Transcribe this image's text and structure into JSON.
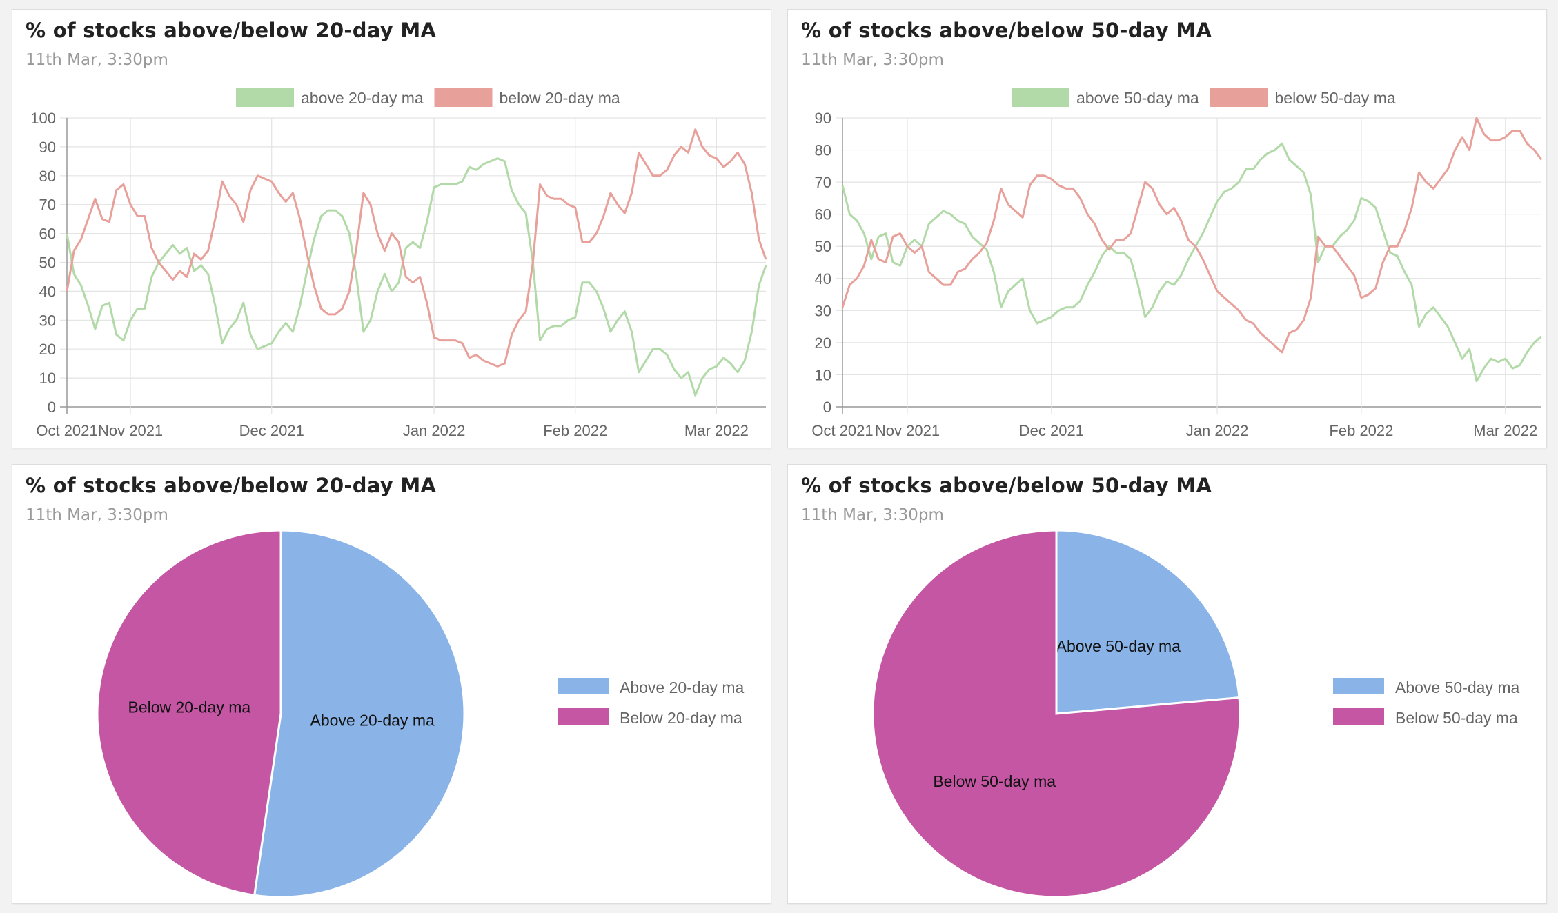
{
  "cards": [
    {
      "title": "% of stocks above/below 20-day MA",
      "subtitle": "11th Mar, 3:30pm"
    },
    {
      "title": "% of stocks above/below 50-day MA",
      "subtitle": "11th Mar, 3:30pm"
    },
    {
      "title": "% of stocks above/below 20-day MA",
      "subtitle": "11th Mar, 3:30pm"
    },
    {
      "title": "% of stocks above/below 50-day MA",
      "subtitle": "11th Mar, 3:30pm"
    }
  ],
  "colors": {
    "above_line": "#b2d9a8",
    "below_line": "#e8a09a",
    "above_pie": "#8ab4e8",
    "below_pie": "#c456a3"
  },
  "chart_data": [
    {
      "type": "line",
      "ylim": [
        0,
        100
      ],
      "yticks": [
        0,
        10,
        20,
        30,
        40,
        50,
        60,
        70,
        80,
        90,
        100
      ],
      "xticks": [
        {
          "label": "Oct 2021",
          "index": 0
        },
        {
          "label": "Nov 2021",
          "index": 9
        },
        {
          "label": "Dec 2021",
          "index": 29
        },
        {
          "label": "Jan 2022",
          "index": 52
        },
        {
          "label": "Feb 2022",
          "index": 72
        },
        {
          "label": "Mar 2022",
          "index": 92
        }
      ],
      "legend_position": "top",
      "series": [
        {
          "name": "above 20-day ma",
          "values": [
            60,
            46,
            42,
            35,
            27,
            35,
            36,
            25,
            23,
            30,
            34,
            34,
            45,
            50,
            53,
            56,
            53,
            55,
            47,
            49,
            46,
            35,
            22,
            27,
            30,
            36,
            25,
            20,
            21,
            22,
            26,
            29,
            26,
            35,
            47,
            58,
            66,
            68,
            68,
            66,
            60,
            45,
            26,
            30,
            40,
            46,
            40,
            43,
            55,
            57,
            55,
            64,
            76,
            77,
            77,
            77,
            78,
            83,
            82,
            84,
            85,
            86,
            85,
            75,
            70,
            67,
            50,
            23,
            27,
            28,
            28,
            30,
            31,
            43,
            43,
            40,
            34,
            26,
            30,
            33,
            26,
            12,
            16,
            20,
            20,
            18,
            13,
            10,
            12,
            4,
            10,
            13,
            14,
            17,
            15,
            12,
            16,
            26,
            42,
            49
          ]
        },
        {
          "name": "below 20-day ma",
          "values": [
            40,
            54,
            58,
            65,
            72,
            65,
            64,
            75,
            77,
            70,
            66,
            66,
            55,
            50,
            47,
            44,
            47,
            45,
            53,
            51,
            54,
            65,
            78,
            73,
            70,
            64,
            75,
            80,
            79,
            78,
            74,
            71,
            74,
            65,
            53,
            42,
            34,
            32,
            32,
            34,
            40,
            55,
            74,
            70,
            60,
            54,
            60,
            57,
            45,
            43,
            45,
            36,
            24,
            23,
            23,
            23,
            22,
            17,
            18,
            16,
            15,
            14,
            15,
            25,
            30,
            33,
            50,
            77,
            73,
            72,
            72,
            70,
            69,
            57,
            57,
            60,
            66,
            74,
            70,
            67,
            74,
            88,
            84,
            80,
            80,
            82,
            87,
            90,
            88,
            96,
            90,
            87,
            86,
            83,
            85,
            88,
            84,
            74,
            58,
            51
          ]
        }
      ]
    },
    {
      "type": "line",
      "ylim": [
        0,
        90
      ],
      "yticks": [
        0,
        10,
        20,
        30,
        40,
        50,
        60,
        70,
        80,
        90
      ],
      "xticks": [
        {
          "label": "Oct 2021",
          "index": 0
        },
        {
          "label": "Nov 2021",
          "index": 9
        },
        {
          "label": "Dec 2021",
          "index": 29
        },
        {
          "label": "Jan 2022",
          "index": 52
        },
        {
          "label": "Feb 2022",
          "index": 72
        },
        {
          "label": "Mar 2022",
          "index": 92
        }
      ],
      "legend_position": "top",
      "series": [
        {
          "name": "above 50-day ma",
          "values": [
            69,
            60,
            58,
            54,
            46,
            53,
            54,
            45,
            44,
            50,
            52,
            50,
            57,
            59,
            61,
            60,
            58,
            57,
            53,
            51,
            49,
            42,
            31,
            36,
            38,
            40,
            30,
            26,
            27,
            28,
            30,
            31,
            31,
            33,
            38,
            42,
            47,
            50,
            48,
            48,
            46,
            38,
            28,
            31,
            36,
            39,
            38,
            41,
            46,
            50,
            54,
            59,
            64,
            67,
            68,
            70,
            74,
            74,
            77,
            79,
            80,
            82,
            77,
            75,
            73,
            66,
            45,
            50,
            50,
            53,
            55,
            58,
            65,
            64,
            62,
            55,
            48,
            47,
            42,
            38,
            25,
            29,
            31,
            28,
            25,
            20,
            15,
            18,
            8,
            12,
            15,
            14,
            15,
            12,
            13,
            17,
            20,
            22
          ]
        },
        {
          "name": "below 50-day ma",
          "values": [
            31,
            38,
            40,
            44,
            52,
            46,
            45,
            53,
            54,
            50,
            48,
            50,
            42,
            40,
            38,
            38,
            42,
            43,
            46,
            48,
            51,
            58,
            68,
            63,
            61,
            59,
            69,
            72,
            72,
            71,
            69,
            68,
            68,
            65,
            60,
            57,
            52,
            49,
            52,
            52,
            54,
            62,
            70,
            68,
            63,
            60,
            62,
            58,
            52,
            50,
            46,
            41,
            36,
            34,
            32,
            30,
            27,
            26,
            23,
            21,
            19,
            17,
            23,
            24,
            27,
            34,
            53,
            50,
            50,
            47,
            44,
            41,
            34,
            35,
            37,
            45,
            50,
            50,
            55,
            62,
            73,
            70,
            68,
            71,
            74,
            80,
            84,
            80,
            90,
            85,
            83,
            83,
            84,
            86,
            86,
            82,
            80,
            77
          ]
        }
      ]
    },
    {
      "type": "pie",
      "legend_position": "right",
      "slices": [
        {
          "label": "Above 20-day ma",
          "value": 52.3
        },
        {
          "label": "Below 20-day ma",
          "value": 47.7
        }
      ]
    },
    {
      "type": "pie",
      "legend_position": "right",
      "slices": [
        {
          "label": "Above 50-day ma",
          "value": 23.6
        },
        {
          "label": "Below 50-day ma",
          "value": 76.4
        }
      ]
    }
  ]
}
